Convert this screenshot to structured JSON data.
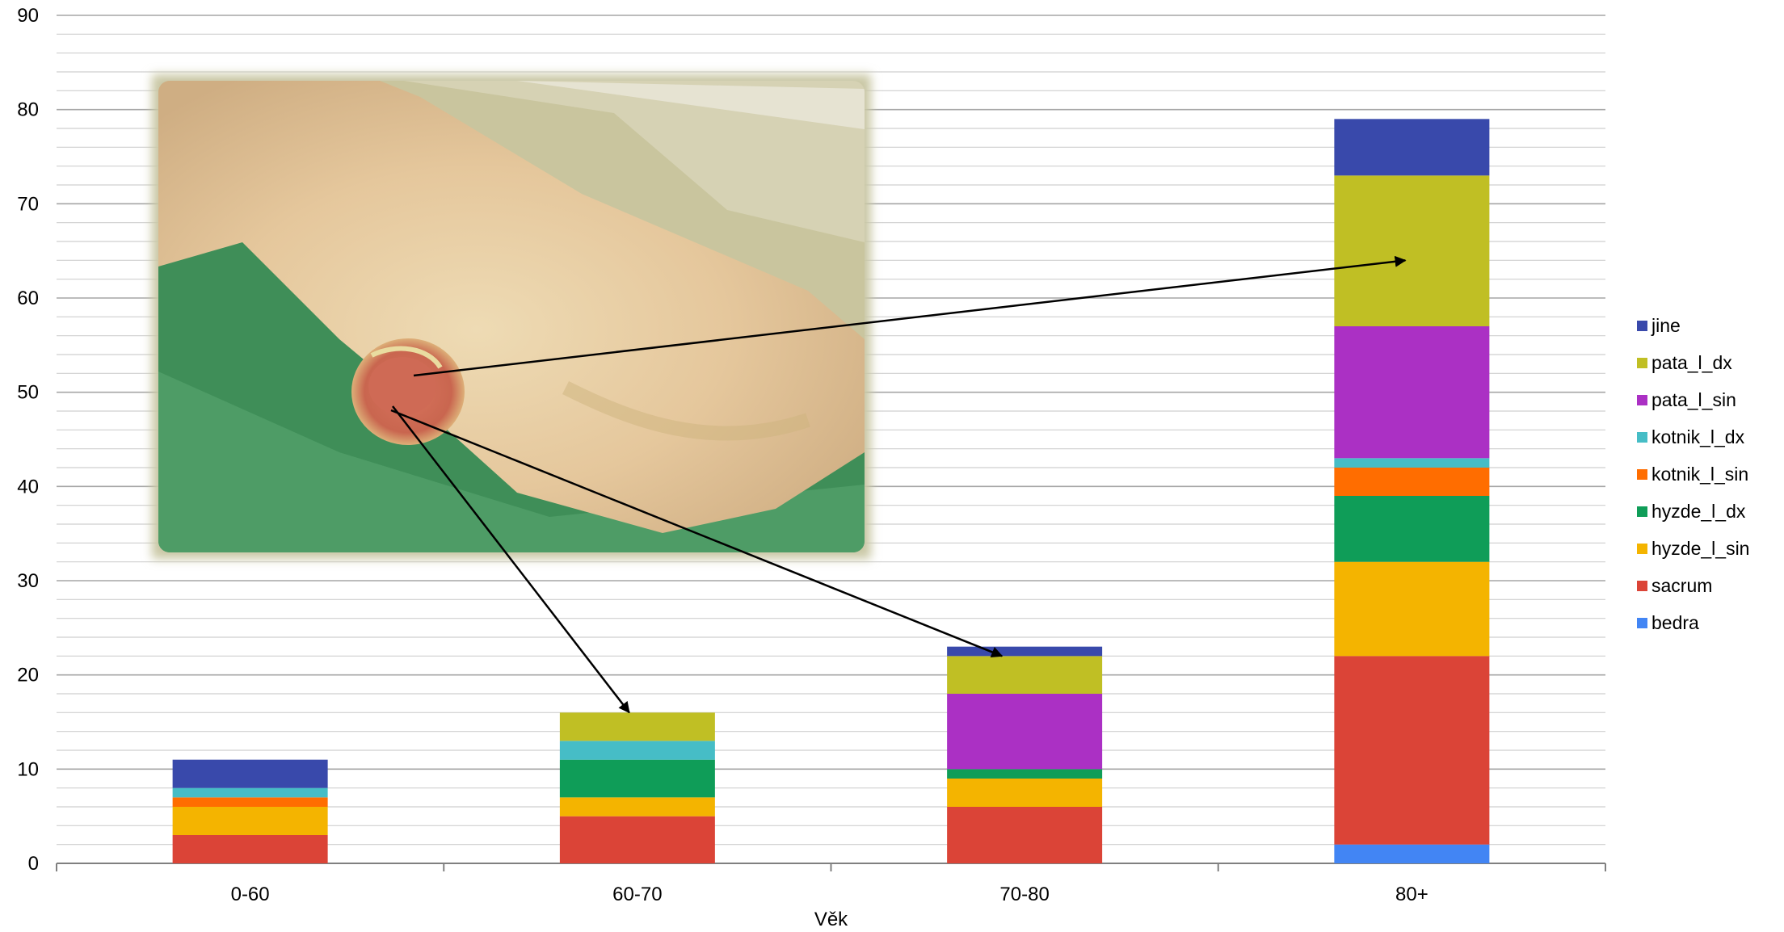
{
  "chart_data": {
    "type": "bar",
    "stacked": true,
    "title": "",
    "xlabel": "Věk",
    "ylabel": "",
    "ylim": [
      0,
      90
    ],
    "y_major_ticks": [
      0,
      10,
      20,
      30,
      40,
      50,
      60,
      70,
      80,
      90
    ],
    "y_minor_step": 2,
    "grid": true,
    "legend_position": "right",
    "categories": [
      "0-60",
      "60-70",
      "70-80",
      "80+"
    ],
    "series": [
      {
        "name": "bedra",
        "color": "#4285f4",
        "values": [
          0,
          0,
          0,
          2
        ]
      },
      {
        "name": "sacrum",
        "color": "#db4437",
        "values": [
          3,
          5,
          6,
          20
        ]
      },
      {
        "name": "hyzde_l_sin",
        "color": "#f4b400",
        "values": [
          3,
          2,
          3,
          10
        ]
      },
      {
        "name": "hyzde_l_dx",
        "color": "#0f9d58",
        "values": [
          0,
          4,
          1,
          7
        ]
      },
      {
        "name": "kotnik_l_sin",
        "color": "#ff6d00",
        "values": [
          1,
          0,
          0,
          3
        ]
      },
      {
        "name": "kotnik_l_dx",
        "color": "#46bdc6",
        "values": [
          1,
          2,
          0,
          1
        ]
      },
      {
        "name": "pata_l_sin",
        "color": "#ab30c4",
        "values": [
          0,
          0,
          8,
          14
        ]
      },
      {
        "name": "pata_l_dx",
        "color": "#c0bf24",
        "values": [
          0,
          3,
          4,
          16
        ]
      },
      {
        "name": "jine",
        "color": "#3949ab",
        "values": [
          3,
          0,
          1,
          6
        ]
      }
    ],
    "inset_photo": "heel-pressure-ulcer-photo",
    "annotation_arrows": [
      {
        "to_category": "60-70",
        "to_value": 16
      },
      {
        "to_category": "70-80",
        "to_value": 22
      },
      {
        "to_category": "80+",
        "to_value": 64
      }
    ]
  }
}
